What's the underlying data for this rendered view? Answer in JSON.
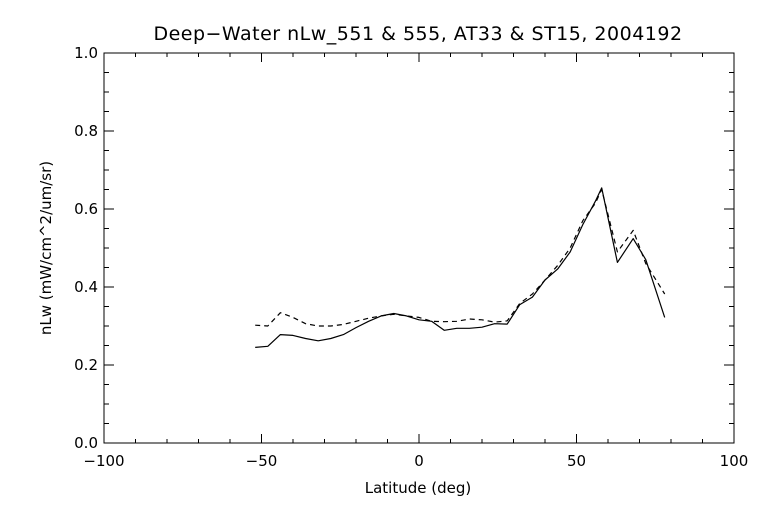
{
  "chart_data": {
    "type": "line",
    "title": "Deep−Water nLw_551 & 555, AT33 & ST15, 2004192",
    "xlabel": "Latitude (deg)",
    "ylabel": "nLw (mW/cm^2/um/sr)",
    "xlim": [
      -100,
      100
    ],
    "ylim": [
      0.0,
      1.0
    ],
    "x_major_ticks": [
      -100,
      -50,
      0,
      50,
      100
    ],
    "x_tick_labels": [
      "−100",
      "−50",
      "0",
      "50",
      "100"
    ],
    "y_major_ticks": [
      0.0,
      0.2,
      0.4,
      0.6,
      0.8,
      1.0
    ],
    "y_tick_labels": [
      "0.0",
      "0.2",
      "0.4",
      "0.6",
      "0.8",
      "1.0"
    ],
    "grid": false,
    "series": [
      {
        "style": "solid",
        "color": "#000000",
        "x": [
          -52,
          -48,
          -44,
          -40,
          -36,
          -32,
          -28,
          -24,
          -20,
          -16,
          -12,
          -8,
          -4,
          0,
          4,
          8,
          12,
          16,
          20,
          24,
          28,
          32,
          36,
          40,
          44,
          48,
          52,
          56,
          58,
          63,
          68,
          72,
          78
        ],
        "y": [
          0.245,
          0.248,
          0.278,
          0.276,
          0.268,
          0.262,
          0.268,
          0.278,
          0.296,
          0.312,
          0.326,
          0.332,
          0.326,
          0.316,
          0.312,
          0.289,
          0.294,
          0.294,
          0.297,
          0.306,
          0.305,
          0.355,
          0.374,
          0.418,
          0.446,
          0.49,
          0.56,
          0.62,
          0.654,
          0.463,
          0.524,
          0.47,
          0.322
        ]
      },
      {
        "style": "dashed",
        "color": "#000000",
        "x": [
          -52,
          -48,
          -44,
          -40,
          -36,
          -32,
          -28,
          -24,
          -20,
          -16,
          -12,
          -8,
          -4,
          0,
          4,
          8,
          12,
          16,
          20,
          24,
          28,
          32,
          36,
          40,
          44,
          48,
          52,
          56,
          58,
          63,
          68,
          72,
          78
        ],
        "y": [
          0.302,
          0.3,
          0.334,
          0.322,
          0.306,
          0.3,
          0.3,
          0.304,
          0.312,
          0.32,
          0.326,
          0.33,
          0.326,
          0.322,
          0.312,
          0.311,
          0.312,
          0.318,
          0.316,
          0.31,
          0.313,
          0.358,
          0.382,
          0.418,
          0.455,
          0.5,
          0.57,
          0.615,
          0.65,
          0.49,
          0.545,
          0.46,
          0.382
        ]
      }
    ]
  }
}
